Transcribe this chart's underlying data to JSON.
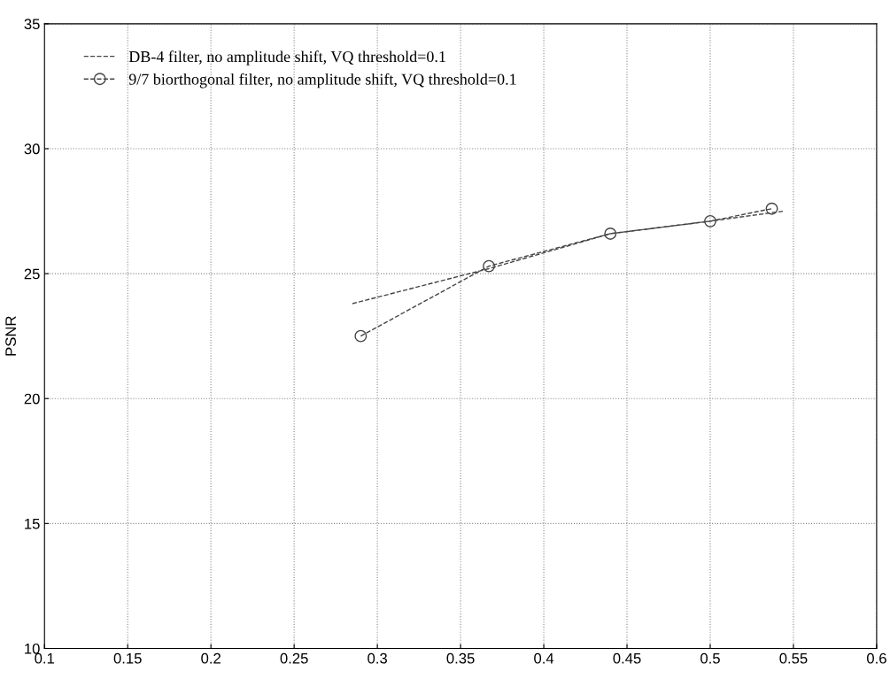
{
  "chart_data": {
    "type": "line",
    "ylabel": "PSNR",
    "xlim": [
      0.1,
      0.6
    ],
    "xticks": [
      0.1,
      0.15,
      0.2,
      0.25,
      0.3,
      0.35,
      0.4,
      0.45,
      0.5,
      0.55,
      0.6
    ],
    "ylim": [
      10,
      35
    ],
    "yticks": [
      10,
      15,
      20,
      25,
      30,
      35
    ],
    "grid": true,
    "legend": "top left",
    "series": [
      {
        "name": "DB-4 filter, no amplitude shift, VQ threshold=0.1",
        "color": "#444444",
        "line_style": "dashed",
        "marker": "none",
        "x": [
          0.285,
          0.367,
          0.44,
          0.5,
          0.544
        ],
        "values": [
          23.8,
          25.2,
          26.6,
          27.1,
          27.5
        ]
      },
      {
        "name": "9/7 biorthogonal filter, no amplitude shift, VQ threshold=0.1",
        "color": "#444444",
        "line_style": "dashed",
        "marker": "circle",
        "x": [
          0.29,
          0.367,
          0.44,
          0.5,
          0.537
        ],
        "values": [
          22.5,
          25.3,
          26.6,
          27.1,
          27.6
        ]
      }
    ]
  }
}
